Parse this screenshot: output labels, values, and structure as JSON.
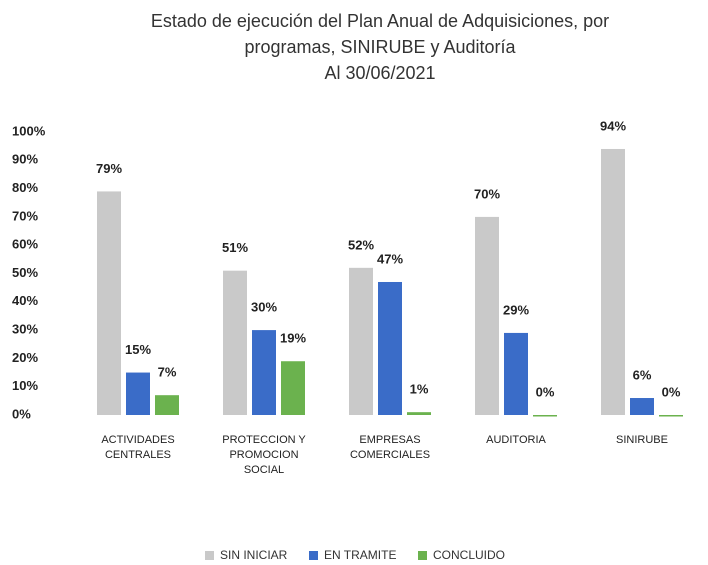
{
  "chart_data": {
    "type": "bar",
    "title": "Estado de ejecución del Plan Anual de Adquisiciones, por programas, SINIRUBE y Auditoría",
    "subtitle": "Al 30/06/2021",
    "categories": [
      "ACTIVIDADES CENTRALES",
      "PROTECCION Y PROMOCION SOCIAL",
      "EMPRESAS COMERCIALES",
      "AUDITORIA",
      "SINIRUBE"
    ],
    "series": [
      {
        "name": "SIN INICIAR",
        "color": "#c9c9c9",
        "values": [
          79,
          51,
          52,
          70,
          94
        ],
        "value_labels": [
          "79%",
          "51%",
          "52%",
          "70%",
          "94%"
        ]
      },
      {
        "name": "EN TRAMITE",
        "color": "#3a6cc8",
        "values": [
          15,
          30,
          47,
          29,
          6
        ],
        "value_labels": [
          "15%",
          "30%",
          "47%",
          "29%",
          "6%"
        ]
      },
      {
        "name": "CONCLUIDO",
        "color": "#6bb24e",
        "values": [
          7,
          19,
          1,
          0,
          0
        ],
        "value_labels": [
          "7%",
          "19%",
          "1%",
          "0%",
          "0%"
        ]
      }
    ],
    "ylim": [
      0,
      100
    ],
    "yticks": [
      {
        "value": 0,
        "label": "0%"
      },
      {
        "value": 10,
        "label": "10%"
      },
      {
        "value": 20,
        "label": "20%"
      },
      {
        "value": 30,
        "label": "30%"
      },
      {
        "value": 40,
        "label": "40%"
      },
      {
        "value": 50,
        "label": "50%"
      },
      {
        "value": 60,
        "label": "60%"
      },
      {
        "value": 70,
        "label": "70%"
      },
      {
        "value": 80,
        "label": "80%"
      },
      {
        "value": 90,
        "label": "90%"
      },
      {
        "value": 100,
        "label": "100%"
      }
    ],
    "grid": false,
    "legend": "bottom"
  }
}
